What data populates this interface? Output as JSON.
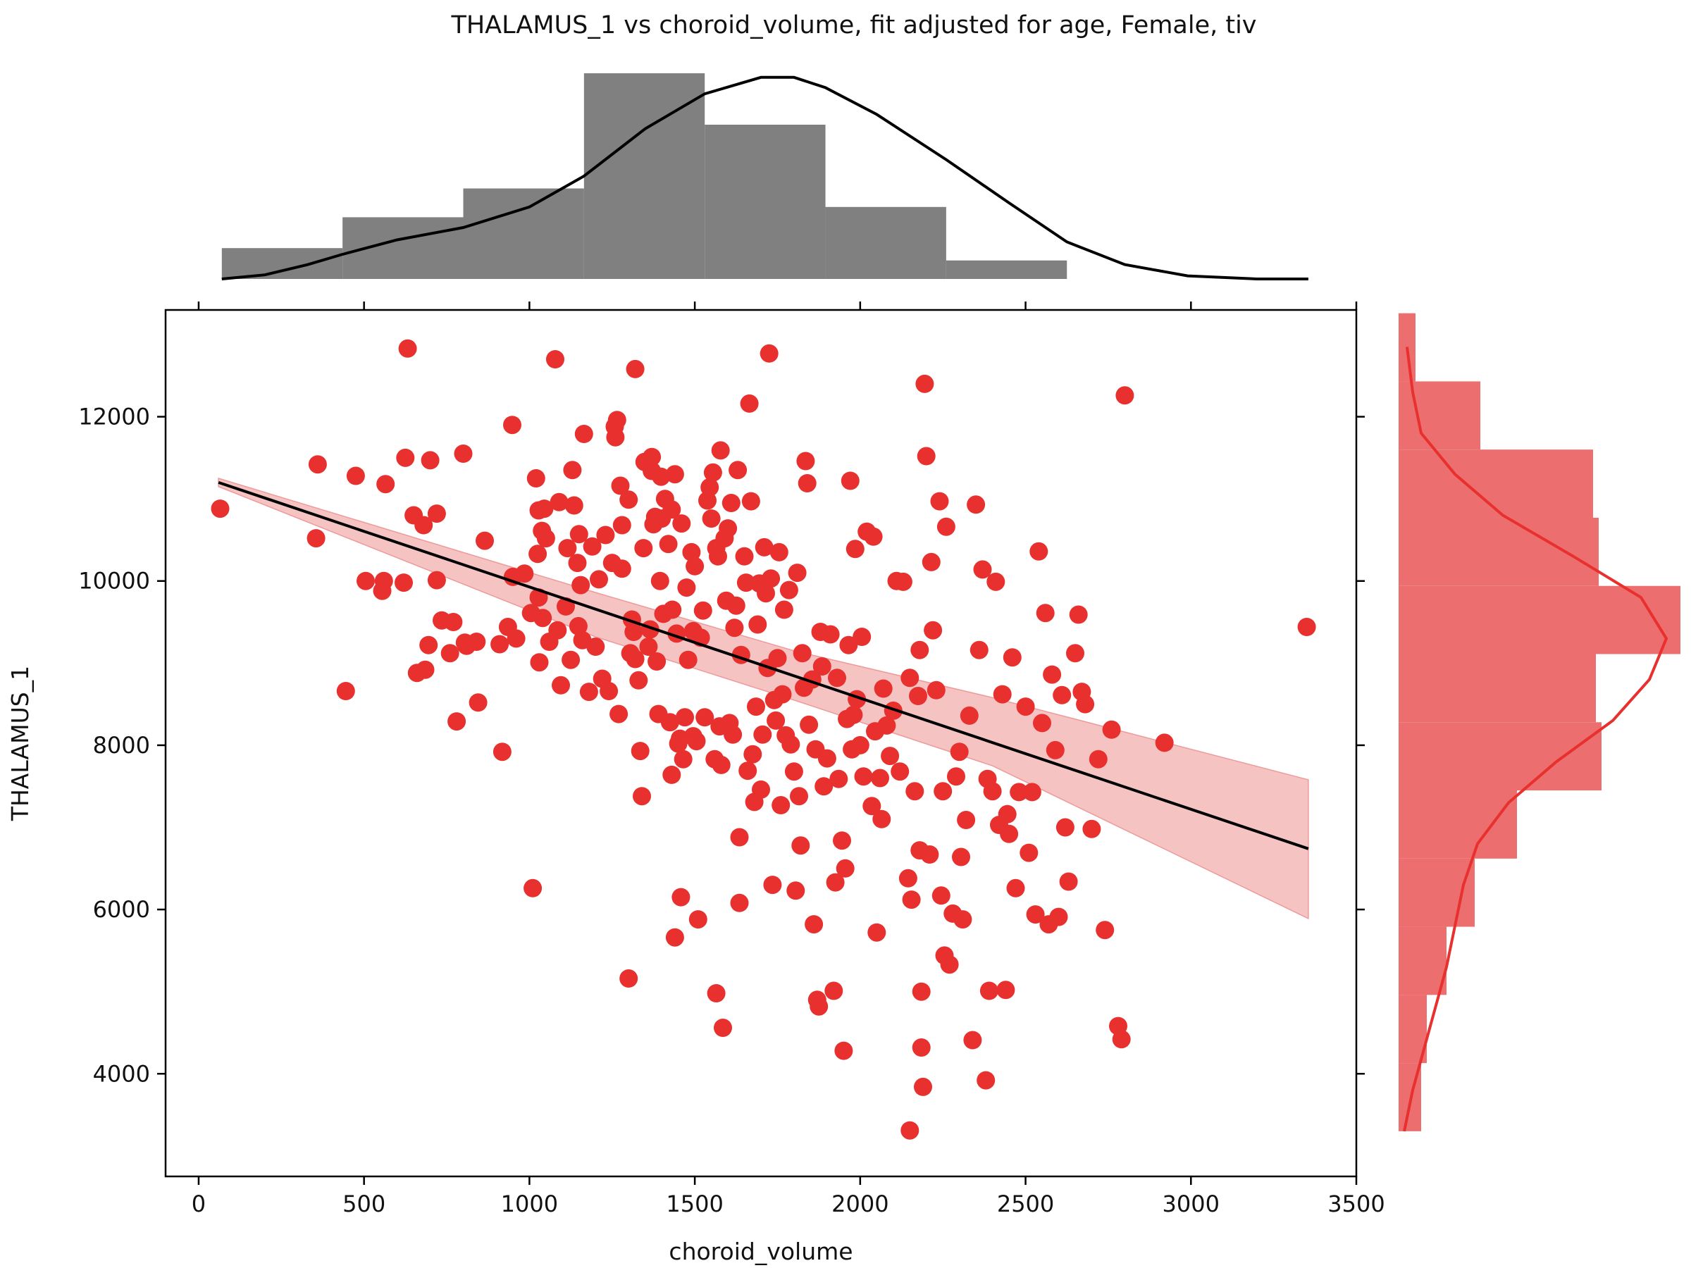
{
  "chart_data": {
    "type": "scatter",
    "title": "THALAMUS_1 vs choroid_volume, fit adjusted for age, Female, tiv",
    "xlabel": "choroid_volume",
    "ylabel": "THALAMUS_1",
    "xlim": [
      -100,
      3500
    ],
    "ylim": [
      2750,
      13300
    ],
    "xticks": [
      0,
      500,
      1000,
      1500,
      2000,
      2500,
      3000,
      3500
    ],
    "yticks": [
      4000,
      6000,
      8000,
      10000,
      12000
    ],
    "grid": false,
    "colors": {
      "points": "#e8302e",
      "fit_line": "#000000",
      "ci_band": "#f4b8b8",
      "top_hist": "#808080",
      "right_hist": "#ec6e6e",
      "right_kde": "#e8302e"
    },
    "fit": {
      "x": [
        60,
        3355
      ],
      "y": [
        11200,
        6740
      ],
      "ci_x": [
        60,
        1200,
        1800,
        2400,
        3355
      ],
      "ci_upper": [
        11250,
        9860,
        9150,
        8580,
        7580
      ],
      "ci_lower": [
        11150,
        9320,
        8550,
        7750,
        5890
      ]
    },
    "points": [
      [
        65,
        10880
      ],
      [
        355,
        10520
      ],
      [
        360,
        11420
      ],
      [
        445,
        8660
      ],
      [
        475,
        11280
      ],
      [
        505,
        10000
      ],
      [
        555,
        9880
      ],
      [
        560,
        10000
      ],
      [
        565,
        11180
      ],
      [
        620,
        9980
      ],
      [
        625,
        11500
      ],
      [
        632,
        12830
      ],
      [
        650,
        10800
      ],
      [
        660,
        8880
      ],
      [
        680,
        10680
      ],
      [
        685,
        8920
      ],
      [
        695,
        9220
      ],
      [
        700,
        11470
      ],
      [
        720,
        10820
      ],
      [
        720,
        10010
      ],
      [
        735,
        9520
      ],
      [
        760,
        9120
      ],
      [
        770,
        9500
      ],
      [
        780,
        8290
      ],
      [
        800,
        11550
      ],
      [
        805,
        9250
      ],
      [
        810,
        9210
      ],
      [
        840,
        9260
      ],
      [
        845,
        8520
      ],
      [
        865,
        10490
      ],
      [
        910,
        9230
      ],
      [
        918,
        7920
      ],
      [
        935,
        9440
      ],
      [
        948,
        11900
      ],
      [
        950,
        10050
      ],
      [
        960,
        9300
      ],
      [
        985,
        10090
      ],
      [
        1005,
        9610
      ],
      [
        1010,
        6260
      ],
      [
        1020,
        11250
      ],
      [
        1025,
        10330
      ],
      [
        1028,
        9800
      ],
      [
        1028,
        10860
      ],
      [
        1030,
        9010
      ],
      [
        1038,
        10610
      ],
      [
        1040,
        9550
      ],
      [
        1045,
        10880
      ],
      [
        1050,
        10520
      ],
      [
        1060,
        9260
      ],
      [
        1078,
        12700
      ],
      [
        1085,
        9400
      ],
      [
        1090,
        10960
      ],
      [
        1095,
        8730
      ],
      [
        1110,
        9690
      ],
      [
        1115,
        10400
      ],
      [
        1125,
        9040
      ],
      [
        1130,
        11350
      ],
      [
        1135,
        10920
      ],
      [
        1145,
        10220
      ],
      [
        1148,
        9450
      ],
      [
        1150,
        10570
      ],
      [
        1155,
        9950
      ],
      [
        1160,
        9280
      ],
      [
        1165,
        11790
      ],
      [
        1180,
        8650
      ],
      [
        1190,
        10420
      ],
      [
        1200,
        9200
      ],
      [
        1210,
        10020
      ],
      [
        1220,
        8810
      ],
      [
        1230,
        10560
      ],
      [
        1240,
        8660
      ],
      [
        1250,
        10220
      ],
      [
        1258,
        11880
      ],
      [
        1260,
        11750
      ],
      [
        1265,
        11960
      ],
      [
        1270,
        8380
      ],
      [
        1275,
        11160
      ],
      [
        1280,
        10680
      ],
      [
        1280,
        10150
      ],
      [
        1300,
        5160
      ],
      [
        1300,
        10990
      ],
      [
        1305,
        9120
      ],
      [
        1310,
        9530
      ],
      [
        1315,
        9380
      ],
      [
        1320,
        12580
      ],
      [
        1320,
        9050
      ],
      [
        1330,
        8790
      ],
      [
        1335,
        7930
      ],
      [
        1340,
        7380
      ],
      [
        1345,
        10400
      ],
      [
        1348,
        11450
      ],
      [
        1360,
        9200
      ],
      [
        1365,
        9410
      ],
      [
        1370,
        11510
      ],
      [
        1370,
        11340
      ],
      [
        1375,
        10690
      ],
      [
        1380,
        10780
      ],
      [
        1385,
        9020
      ],
      [
        1390,
        8380
      ],
      [
        1395,
        10000
      ],
      [
        1398,
        11270
      ],
      [
        1400,
        10760
      ],
      [
        1405,
        9600
      ],
      [
        1410,
        11000
      ],
      [
        1420,
        10450
      ],
      [
        1425,
        8280
      ],
      [
        1430,
        7640
      ],
      [
        1430,
        10870
      ],
      [
        1432,
        9650
      ],
      [
        1440,
        5660
      ],
      [
        1440,
        11300
      ],
      [
        1445,
        9360
      ],
      [
        1450,
        8020
      ],
      [
        1455,
        8080
      ],
      [
        1458,
        6150
      ],
      [
        1460,
        10700
      ],
      [
        1465,
        7830
      ],
      [
        1470,
        8340
      ],
      [
        1475,
        9920
      ],
      [
        1480,
        9040
      ],
      [
        1490,
        10350
      ],
      [
        1495,
        9390
      ],
      [
        1495,
        8110
      ],
      [
        1500,
        10180
      ],
      [
        1505,
        8050
      ],
      [
        1510,
        5880
      ],
      [
        1518,
        9310
      ],
      [
        1525,
        9640
      ],
      [
        1530,
        8340
      ],
      [
        1538,
        10980
      ],
      [
        1545,
        11140
      ],
      [
        1550,
        10760
      ],
      [
        1555,
        11320
      ],
      [
        1560,
        7830
      ],
      [
        1565,
        10400
      ],
      [
        1565,
        4980
      ],
      [
        1570,
        10300
      ],
      [
        1575,
        8230
      ],
      [
        1578,
        11590
      ],
      [
        1580,
        7760
      ],
      [
        1585,
        4560
      ],
      [
        1590,
        10520
      ],
      [
        1595,
        9760
      ],
      [
        1600,
        10640
      ],
      [
        1605,
        8270
      ],
      [
        1610,
        10950
      ],
      [
        1615,
        8130
      ],
      [
        1620,
        9430
      ],
      [
        1625,
        9700
      ],
      [
        1630,
        11350
      ],
      [
        1635,
        6880
      ],
      [
        1635,
        6080
      ],
      [
        1640,
        9100
      ],
      [
        1650,
        10300
      ],
      [
        1655,
        9980
      ],
      [
        1660,
        7690
      ],
      [
        1665,
        12160
      ],
      [
        1670,
        10970
      ],
      [
        1675,
        7890
      ],
      [
        1680,
        7310
      ],
      [
        1685,
        8470
      ],
      [
        1690,
        9470
      ],
      [
        1695,
        9970
      ],
      [
        1700,
        7460
      ],
      [
        1705,
        8130
      ],
      [
        1710,
        10410
      ],
      [
        1715,
        9850
      ],
      [
        1720,
        8940
      ],
      [
        1725,
        12770
      ],
      [
        1730,
        10030
      ],
      [
        1735,
        6300
      ],
      [
        1740,
        8550
      ],
      [
        1745,
        8300
      ],
      [
        1750,
        9060
      ],
      [
        1755,
        10350
      ],
      [
        1760,
        7270
      ],
      [
        1765,
        8620
      ],
      [
        1770,
        9650
      ],
      [
        1775,
        8120
      ],
      [
        1785,
        9890
      ],
      [
        1790,
        8010
      ],
      [
        1800,
        7680
      ],
      [
        1805,
        6230
      ],
      [
        1810,
        10100
      ],
      [
        1815,
        7380
      ],
      [
        1820,
        6780
      ],
      [
        1825,
        9120
      ],
      [
        1830,
        8700
      ],
      [
        1835,
        11460
      ],
      [
        1840,
        11190
      ],
      [
        1845,
        8250
      ],
      [
        1855,
        8800
      ],
      [
        1860,
        5820
      ],
      [
        1865,
        7950
      ],
      [
        1870,
        4900
      ],
      [
        1875,
        4820
      ],
      [
        1880,
        9380
      ],
      [
        1885,
        8960
      ],
      [
        1890,
        7500
      ],
      [
        1900,
        7840
      ],
      [
        1910,
        9350
      ],
      [
        1920,
        5010
      ],
      [
        1925,
        6330
      ],
      [
        1930,
        8820
      ],
      [
        1935,
        7590
      ],
      [
        1945,
        6840
      ],
      [
        1950,
        4280
      ],
      [
        1955,
        6500
      ],
      [
        1960,
        8320
      ],
      [
        1965,
        9220
      ],
      [
        1970,
        11220
      ],
      [
        1975,
        7950
      ],
      [
        1980,
        8370
      ],
      [
        1985,
        10390
      ],
      [
        1990,
        8560
      ],
      [
        2000,
        8000
      ],
      [
        2005,
        9320
      ],
      [
        2010,
        7620
      ],
      [
        2020,
        10600
      ],
      [
        2035,
        7260
      ],
      [
        2040,
        10540
      ],
      [
        2045,
        8170
      ],
      [
        2050,
        5720
      ],
      [
        2060,
        7600
      ],
      [
        2065,
        7100
      ],
      [
        2070,
        8690
      ],
      [
        2080,
        8240
      ],
      [
        2090,
        7870
      ],
      [
        2100,
        8420
      ],
      [
        2110,
        10000
      ],
      [
        2120,
        7680
      ],
      [
        2130,
        9990
      ],
      [
        2145,
        6380
      ],
      [
        2150,
        8820
      ],
      [
        2150,
        3310
      ],
      [
        2155,
        6120
      ],
      [
        2165,
        7440
      ],
      [
        2175,
        8600
      ],
      [
        2180,
        6720
      ],
      [
        2180,
        9160
      ],
      [
        2185,
        5000
      ],
      [
        2185,
        4320
      ],
      [
        2190,
        3840
      ],
      [
        2195,
        12400
      ],
      [
        2200,
        11520
      ],
      [
        2210,
        6670
      ],
      [
        2215,
        10230
      ],
      [
        2220,
        9400
      ],
      [
        2230,
        8670
      ],
      [
        2240,
        10970
      ],
      [
        2245,
        6170
      ],
      [
        2250,
        7440
      ],
      [
        2255,
        5440
      ],
      [
        2260,
        10660
      ],
      [
        2270,
        5330
      ],
      [
        2280,
        5950
      ],
      [
        2290,
        7620
      ],
      [
        2300,
        7920
      ],
      [
        2305,
        6640
      ],
      [
        2310,
        5880
      ],
      [
        2320,
        7090
      ],
      [
        2330,
        8360
      ],
      [
        2340,
        4410
      ],
      [
        2350,
        10930
      ],
      [
        2360,
        9160
      ],
      [
        2370,
        10140
      ],
      [
        2380,
        3920
      ],
      [
        2385,
        7590
      ],
      [
        2390,
        5010
      ],
      [
        2400,
        7440
      ],
      [
        2410,
        9990
      ],
      [
        2420,
        7030
      ],
      [
        2430,
        8620
      ],
      [
        2440,
        5020
      ],
      [
        2445,
        7160
      ],
      [
        2450,
        6920
      ],
      [
        2460,
        9070
      ],
      [
        2470,
        6260
      ],
      [
        2480,
        7430
      ],
      [
        2500,
        8470
      ],
      [
        2510,
        6690
      ],
      [
        2520,
        7430
      ],
      [
        2530,
        5940
      ],
      [
        2540,
        10360
      ],
      [
        2550,
        8270
      ],
      [
        2560,
        9610
      ],
      [
        2570,
        5820
      ],
      [
        2580,
        8860
      ],
      [
        2590,
        7940
      ],
      [
        2600,
        5910
      ],
      [
        2610,
        8610
      ],
      [
        2620,
        7000
      ],
      [
        2630,
        6340
      ],
      [
        2650,
        9120
      ],
      [
        2660,
        9590
      ],
      [
        2670,
        8650
      ],
      [
        2680,
        8500
      ],
      [
        2700,
        6980
      ],
      [
        2720,
        7830
      ],
      [
        2740,
        5750
      ],
      [
        2760,
        8190
      ],
      [
        2780,
        4580
      ],
      [
        2790,
        4420
      ],
      [
        2800,
        12260
      ],
      [
        2920,
        8030
      ],
      [
        3350,
        9440
      ]
    ],
    "top_histogram": {
      "bin_edges": [
        70,
        435,
        800,
        1165,
        1530,
        1895,
        2260,
        2625,
        2990
      ],
      "counts": [
        0.15,
        0.3,
        0.44,
        1.0,
        0.75,
        0.35,
        0.09,
        0.0
      ],
      "kde_x": [
        70,
        200,
        330,
        435,
        600,
        800,
        1000,
        1165,
        1350,
        1530,
        1700,
        1800,
        1895,
        2050,
        2260,
        2450,
        2625,
        2800,
        2990,
        3200,
        3355
      ],
      "kde_y": [
        0.0,
        0.02,
        0.07,
        0.12,
        0.19,
        0.25,
        0.35,
        0.5,
        0.73,
        0.9,
        0.98,
        0.98,
        0.93,
        0.8,
        0.58,
        0.37,
        0.18,
        0.07,
        0.015,
        0.0,
        0.0
      ]
    },
    "right_histogram": {
      "bin_edges": [
        3300,
        4130,
        4960,
        5790,
        6620,
        7450,
        8280,
        9110,
        9940,
        10770,
        11600,
        12430,
        13260
      ],
      "counts": [
        0.08,
        0.1,
        0.17,
        0.27,
        0.42,
        0.72,
        0.7,
        1.0,
        0.71,
        0.69,
        0.29,
        0.06
      ],
      "kde_y": [
        3300,
        3800,
        4300,
        4800,
        5300,
        5800,
        6300,
        6800,
        7300,
        7800,
        8300,
        8800,
        9300,
        9800,
        10300,
        10800,
        11300,
        11800,
        12300,
        12850
      ],
      "kde_x": [
        0.02,
        0.05,
        0.09,
        0.13,
        0.17,
        0.2,
        0.23,
        0.28,
        0.39,
        0.56,
        0.76,
        0.89,
        0.95,
        0.86,
        0.62,
        0.37,
        0.2,
        0.08,
        0.05,
        0.03
      ]
    }
  }
}
